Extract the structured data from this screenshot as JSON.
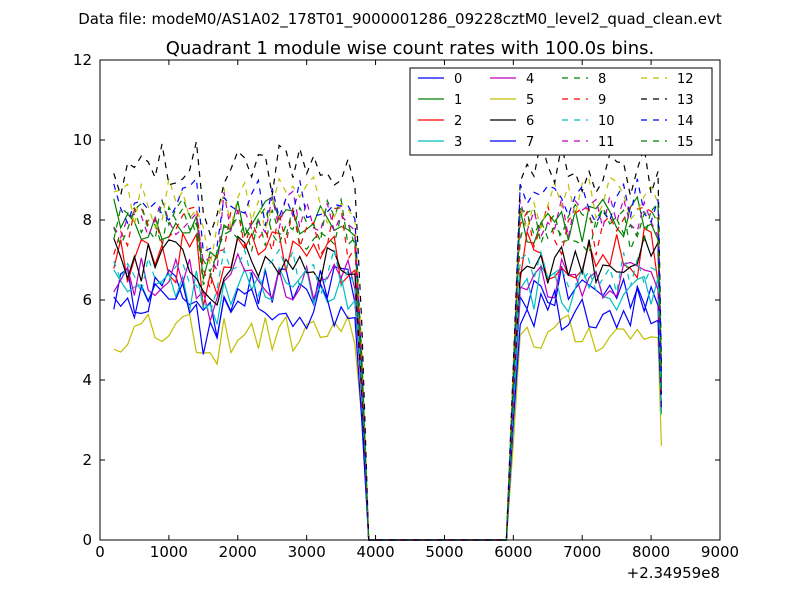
{
  "figure": {
    "suptitle": "Data file: modeM0/AS1A02_178T01_9000001286_09228cztM0_level2_quad_clean.evt"
  },
  "chart_data": {
    "type": "line",
    "title": "Quadrant 1 module wise count rates with 100.0s bins.",
    "xlabel": "",
    "ylabel": "",
    "xlim": [
      0,
      9000
    ],
    "ylim": [
      0,
      12
    ],
    "x_offset_label": "+2.34959e8",
    "grid": false,
    "legend_position": "top-right",
    "legend_columns": 4,
    "xticks": [
      0,
      1000,
      2000,
      3000,
      4000,
      5000,
      6000,
      7000,
      8000,
      9000
    ],
    "yticks": [
      0,
      2,
      4,
      6,
      8,
      10,
      12
    ],
    "x": [
      200,
      300,
      400,
      500,
      600,
      700,
      800,
      900,
      1000,
      1100,
      1200,
      1300,
      1400,
      1500,
      1600,
      1700,
      1800,
      1900,
      2000,
      2100,
      2200,
      2300,
      2400,
      2500,
      2600,
      2700,
      2800,
      2900,
      3000,
      3100,
      3200,
      3300,
      3400,
      3500,
      3600,
      3700,
      3800,
      3900,
      4000,
      5900,
      6000,
      6100,
      6200,
      6300,
      6400,
      6500,
      6600,
      6700,
      6800,
      6900,
      7000,
      7100,
      7200,
      7300,
      7400,
      7500,
      7600,
      7700,
      7800,
      7900,
      8000,
      8100,
      8150
    ],
    "series": [
      {
        "name": "0",
        "color": "#0000ff",
        "dash": "solid",
        "base": 6.25,
        "amp": 0.3
      },
      {
        "name": "1",
        "color": "#008000",
        "dash": "solid",
        "base": 8.0,
        "amp": 0.3
      },
      {
        "name": "2",
        "color": "#ff0000",
        "dash": "solid",
        "base": 7.1,
        "amp": 0.35
      },
      {
        "name": "3",
        "color": "#00bfbf",
        "dash": "solid",
        "base": 6.3,
        "amp": 0.3
      },
      {
        "name": "4",
        "color": "#bf00bf",
        "dash": "solid",
        "base": 6.6,
        "amp": 0.3
      },
      {
        "name": "5",
        "color": "#bfbf00",
        "dash": "solid",
        "base": 5.15,
        "amp": 0.25
      },
      {
        "name": "6",
        "color": "#000000",
        "dash": "solid",
        "base": 7.0,
        "amp": 0.3
      },
      {
        "name": "7",
        "color": "#0000ff",
        "dash": "solid",
        "base": 5.85,
        "amp": 0.3
      },
      {
        "name": "8",
        "color": "#008000",
        "dash": "dashed",
        "base": 7.75,
        "amp": 0.3
      },
      {
        "name": "9",
        "color": "#ff0000",
        "dash": "dashed",
        "base": 7.7,
        "amp": 0.35
      },
      {
        "name": "10",
        "color": "#00bfbf",
        "dash": "dashed",
        "base": 6.7,
        "amp": 0.3
      },
      {
        "name": "11",
        "color": "#bf00bf",
        "dash": "dashed",
        "base": 8.15,
        "amp": 0.3
      },
      {
        "name": "12",
        "color": "#bfbf00",
        "dash": "dashed",
        "base": 8.45,
        "amp": 0.35
      },
      {
        "name": "13",
        "color": "#000000",
        "dash": "dashed",
        "base": 9.3,
        "amp": 0.35
      },
      {
        "name": "14",
        "color": "#0000ff",
        "dash": "dashed",
        "base": 8.45,
        "amp": 0.3
      },
      {
        "name": "15",
        "color": "#008000",
        "dash": "dashed",
        "base": 7.95,
        "amp": 0.3
      }
    ]
  }
}
